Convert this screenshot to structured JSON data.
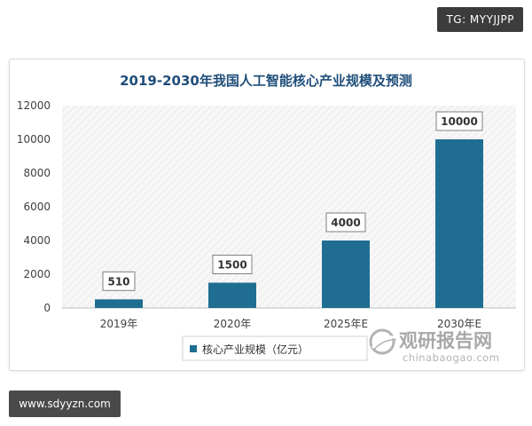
{
  "badges": {
    "tg": "TG: MYYJJPP",
    "site": "www.sdyyzn.com"
  },
  "watermark": {
    "name": "观研报告网",
    "url": "chinabaogao.com"
  },
  "chart_data": {
    "type": "bar",
    "title": "2019-2030年我国人工智能核心产业规模及预测",
    "categories": [
      "2019年",
      "2020年",
      "2025年E",
      "2030年E"
    ],
    "series": [
      {
        "name": "核心产业规模（亿元）",
        "values": [
          510,
          1500,
          4000,
          10000
        ]
      }
    ],
    "data_labels": [
      "510",
      "1500",
      "4000",
      "10000"
    ],
    "ylim": [
      0,
      12000
    ],
    "yticks": [
      0,
      2000,
      4000,
      6000,
      8000,
      10000,
      12000
    ],
    "ytick_labels": [
      "0",
      "2000",
      "4000",
      "6000",
      "8000",
      "10000",
      "12000"
    ],
    "xlabel": "",
    "ylabel": "",
    "legend_position": "bottom-left",
    "grid": false,
    "bar_color": "#1f6e91",
    "title_color": "#1f4e79",
    "plot_background": "hatched-light-gray"
  }
}
